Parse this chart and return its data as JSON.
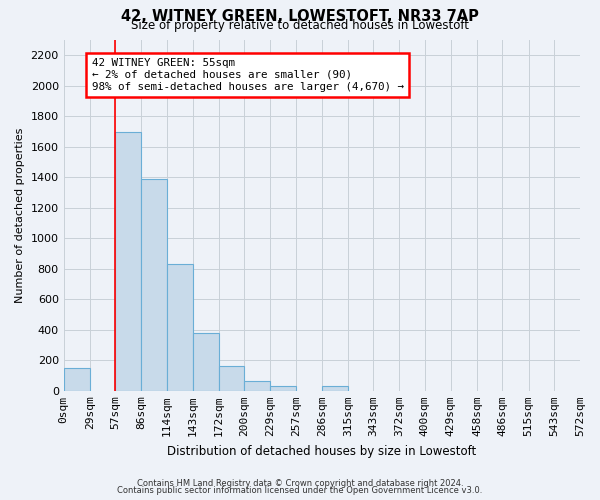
{
  "title": "42, WITNEY GREEN, LOWESTOFT, NR33 7AP",
  "subtitle": "Size of property relative to detached houses in Lowestoft",
  "xlabel": "Distribution of detached houses by size in Lowestoft",
  "ylabel": "Number of detached properties",
  "bin_edges": [
    0,
    29,
    57,
    86,
    114,
    143,
    172,
    200,
    229,
    257,
    286,
    315,
    343,
    372,
    400,
    429,
    458,
    486,
    515,
    543,
    572
  ],
  "bin_labels": [
    "0sqm",
    "29sqm",
    "57sqm",
    "86sqm",
    "114sqm",
    "143sqm",
    "172sqm",
    "200sqm",
    "229sqm",
    "257sqm",
    "286sqm",
    "315sqm",
    "343sqm",
    "372sqm",
    "400sqm",
    "429sqm",
    "458sqm",
    "486sqm",
    "515sqm",
    "543sqm",
    "572sqm"
  ],
  "counts": [
    150,
    0,
    1700,
    1390,
    830,
    380,
    160,
    65,
    30,
    0,
    30,
    0,
    0,
    0,
    0,
    0,
    0,
    0,
    0,
    0
  ],
  "bar_color": "#c8daea",
  "bar_edge_color": "#6aaed6",
  "property_line_x": 57,
  "property_line_color": "red",
  "annotation_line1": "42 WITNEY GREEN: 55sqm",
  "annotation_line2": "← 2% of detached houses are smaller (90)",
  "annotation_line3": "98% of semi-detached houses are larger (4,670) →",
  "annotation_box_color": "white",
  "annotation_box_edge_color": "red",
  "ylim": [
    0,
    2300
  ],
  "yticks": [
    0,
    200,
    400,
    600,
    800,
    1000,
    1200,
    1400,
    1600,
    1800,
    2000,
    2200
  ],
  "grid_color": "#c8d0d8",
  "footnote1": "Contains HM Land Registry data © Crown copyright and database right 2024.",
  "footnote2": "Contains public sector information licensed under the Open Government Licence v3.0.",
  "background_color": "#eef2f8",
  "plot_bg_color": "#eef2f8"
}
